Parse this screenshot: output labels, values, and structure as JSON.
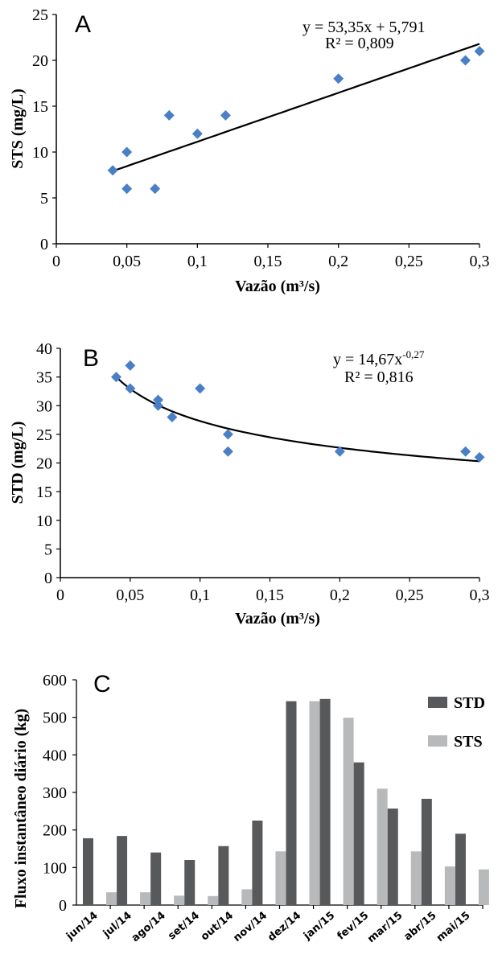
{
  "chart_data": [
    {
      "type": "scatter",
      "panel_label": "A",
      "xlabel": "Vazão (m³/s)",
      "ylabel": "STS (mg/L)",
      "xlim": [
        0,
        0.3
      ],
      "ylim": [
        0,
        25
      ],
      "xticks": [
        "0",
        "0,05",
        "0,1",
        "0,15",
        "0,2",
        "0,25",
        "0,3"
      ],
      "yticks": [
        "0",
        "5",
        "10",
        "15",
        "20",
        "25"
      ],
      "series": [
        {
          "x": [
            0.04,
            0.05,
            0.05,
            0.07,
            0.08,
            0.1,
            0.12,
            0.2,
            0.29,
            0.3
          ],
          "y": [
            8,
            10,
            6,
            6,
            14,
            12,
            14,
            18,
            20,
            21
          ],
          "color": "#4a7fc8"
        }
      ],
      "trendline": {
        "type": "linear",
        "slope": 53.35,
        "intercept": 5.791,
        "x_range": [
          0.04,
          0.3
        ]
      },
      "equation": "y = 53,35x + 5,791",
      "r2": "R² = 0,809"
    },
    {
      "type": "scatter",
      "panel_label": "B",
      "xlabel": "Vazão (m³/s)",
      "ylabel": "STD (mg/L)",
      "xlim": [
        0,
        0.3
      ],
      "ylim": [
        0,
        40
      ],
      "xticks": [
        "0",
        "0,05",
        "0,1",
        "0,15",
        "0,2",
        "0,25",
        "0,3"
      ],
      "yticks": [
        "0",
        "5",
        "10",
        "15",
        "20",
        "25",
        "30",
        "35",
        "40"
      ],
      "series": [
        {
          "x": [
            0.04,
            0.05,
            0.05,
            0.07,
            0.07,
            0.08,
            0.1,
            0.12,
            0.12,
            0.2,
            0.29,
            0.3
          ],
          "y": [
            35,
            37,
            33,
            31,
            30,
            28,
            33,
            25,
            22,
            22,
            22,
            21
          ],
          "color": "#4a7fc8"
        }
      ],
      "trendline": {
        "type": "power",
        "a": 14.67,
        "b": -0.27,
        "x_range": [
          0.04,
          0.3
        ]
      },
      "equation": "y = 14,67x",
      "equation_exp": "-0,27",
      "r2": "R² = 0,816"
    },
    {
      "type": "bar",
      "panel_label": "C",
      "ylabel": "Fluxo instantâneo diário (kg)",
      "ylim": [
        0,
        600
      ],
      "yticks": [
        "0",
        "100",
        "200",
        "300",
        "400",
        "500",
        "600"
      ],
      "categories": [
        "jun/14",
        "jul/14",
        "ago/14",
        "set/14",
        "out/14",
        "nov/14",
        "dez/14",
        "jan/15",
        "fev/15",
        "mar/15",
        "abr/15",
        "mai/15"
      ],
      "series": [
        {
          "name": "STD",
          "color": "#58595b",
          "values": [
            178,
            184,
            140,
            120,
            157,
            225,
            543,
            549,
            380,
            257,
            283,
            190
          ]
        },
        {
          "name": "STS",
          "color": "#b8b9bb",
          "values": [
            34,
            34,
            25,
            24,
            42,
            143,
            543,
            499,
            310,
            143,
            103,
            95
          ]
        }
      ],
      "legend_position": "top-right"
    }
  ]
}
